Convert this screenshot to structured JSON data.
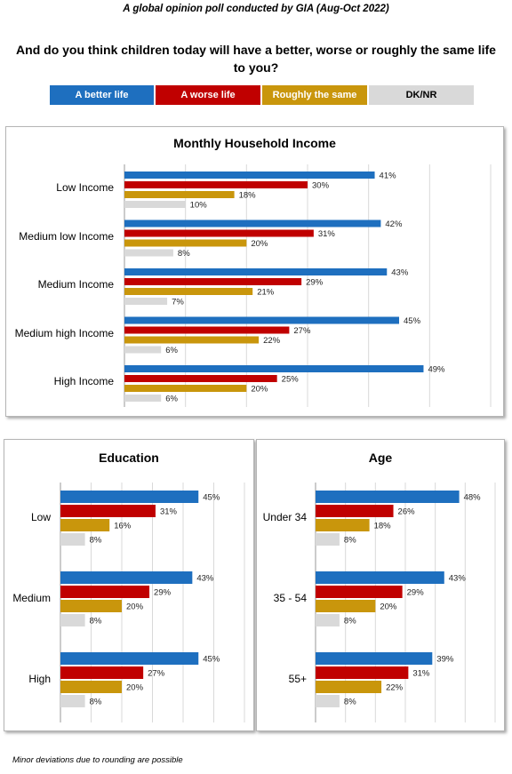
{
  "header": {
    "top_title": "A global opinion poll conducted by GIA (Aug-Oct 2022)",
    "question": "And do you think children today will have a better, worse or roughly the same life to you?"
  },
  "legend": [
    {
      "label": "A better life",
      "color": "#1e6fbf",
      "text_color": "#ffffff"
    },
    {
      "label": "A worse life",
      "color": "#c00000",
      "text_color": "#ffffff"
    },
    {
      "label": "Roughly the same",
      "color": "#c9960c",
      "text_color": "#ffffff"
    },
    {
      "label": "DK/NR",
      "color": "#d9d9d9",
      "text_color": "#000000"
    }
  ],
  "footnote": "Minor deviations due to rounding are possible",
  "chart_data": [
    {
      "type": "bar",
      "orientation": "horizontal",
      "title": "Monthly Household Income",
      "categories": [
        "Low Income",
        "Medium low Income",
        "Medium Income",
        "Medium high Income",
        "High Income"
      ],
      "series": [
        {
          "name": "A better life",
          "values": [
            41,
            42,
            43,
            45,
            49
          ],
          "labels": [
            "41%",
            "42%",
            "43%",
            "45%",
            "49%"
          ]
        },
        {
          "name": "A worse life",
          "values": [
            30,
            31,
            29,
            27,
            25
          ],
          "labels": [
            "30%",
            "31%",
            "29%",
            "27%",
            "25%"
          ]
        },
        {
          "name": "Roughly the same",
          "values": [
            18,
            20,
            21,
            22,
            20
          ],
          "labels": [
            "18%",
            "20%",
            "21%",
            "22%",
            "20%"
          ]
        },
        {
          "name": "DK/NR",
          "values": [
            10,
            8,
            7,
            6,
            6
          ],
          "labels": [
            "10%",
            "8%",
            "7%",
            "6%",
            "6%"
          ]
        }
      ],
      "xlim": [
        0,
        60
      ],
      "grid": true
    },
    {
      "type": "bar",
      "orientation": "horizontal",
      "title": "Education",
      "categories": [
        "Low",
        "Medium",
        "High"
      ],
      "series": [
        {
          "name": "A better life",
          "values": [
            45,
            43,
            45
          ],
          "labels": [
            "45%",
            "43%",
            "45%"
          ]
        },
        {
          "name": "A worse life",
          "values": [
            31,
            29,
            27
          ],
          "labels": [
            "31%",
            "29%",
            "27%"
          ]
        },
        {
          "name": "Roughly the same",
          "values": [
            16,
            20,
            20
          ],
          "labels": [
            "16%",
            "20%",
            "20%"
          ]
        },
        {
          "name": "DK/NR",
          "values": [
            8,
            8,
            8
          ],
          "labels": [
            "8%",
            "8%",
            "8%"
          ]
        }
      ],
      "xlim": [
        0,
        60
      ],
      "grid": true
    },
    {
      "type": "bar",
      "orientation": "horizontal",
      "title": "Age",
      "categories": [
        "Under 34",
        "35 - 54",
        "55+"
      ],
      "series": [
        {
          "name": "A better life",
          "values": [
            48,
            43,
            39
          ],
          "labels": [
            "48%",
            "43%",
            "39%"
          ]
        },
        {
          "name": "A worse life",
          "values": [
            26,
            29,
            31
          ],
          "labels": [
            "26%",
            "29%",
            "31%"
          ]
        },
        {
          "name": "Roughly the same",
          "values": [
            18,
            20,
            22
          ],
          "labels": [
            "18%",
            "20%",
            "22%"
          ]
        },
        {
          "name": "DK/NR",
          "values": [
            8,
            8,
            8
          ],
          "labels": [
            "8%",
            "8%",
            "8%"
          ]
        }
      ],
      "xlim": [
        0,
        60
      ],
      "grid": true
    }
  ]
}
